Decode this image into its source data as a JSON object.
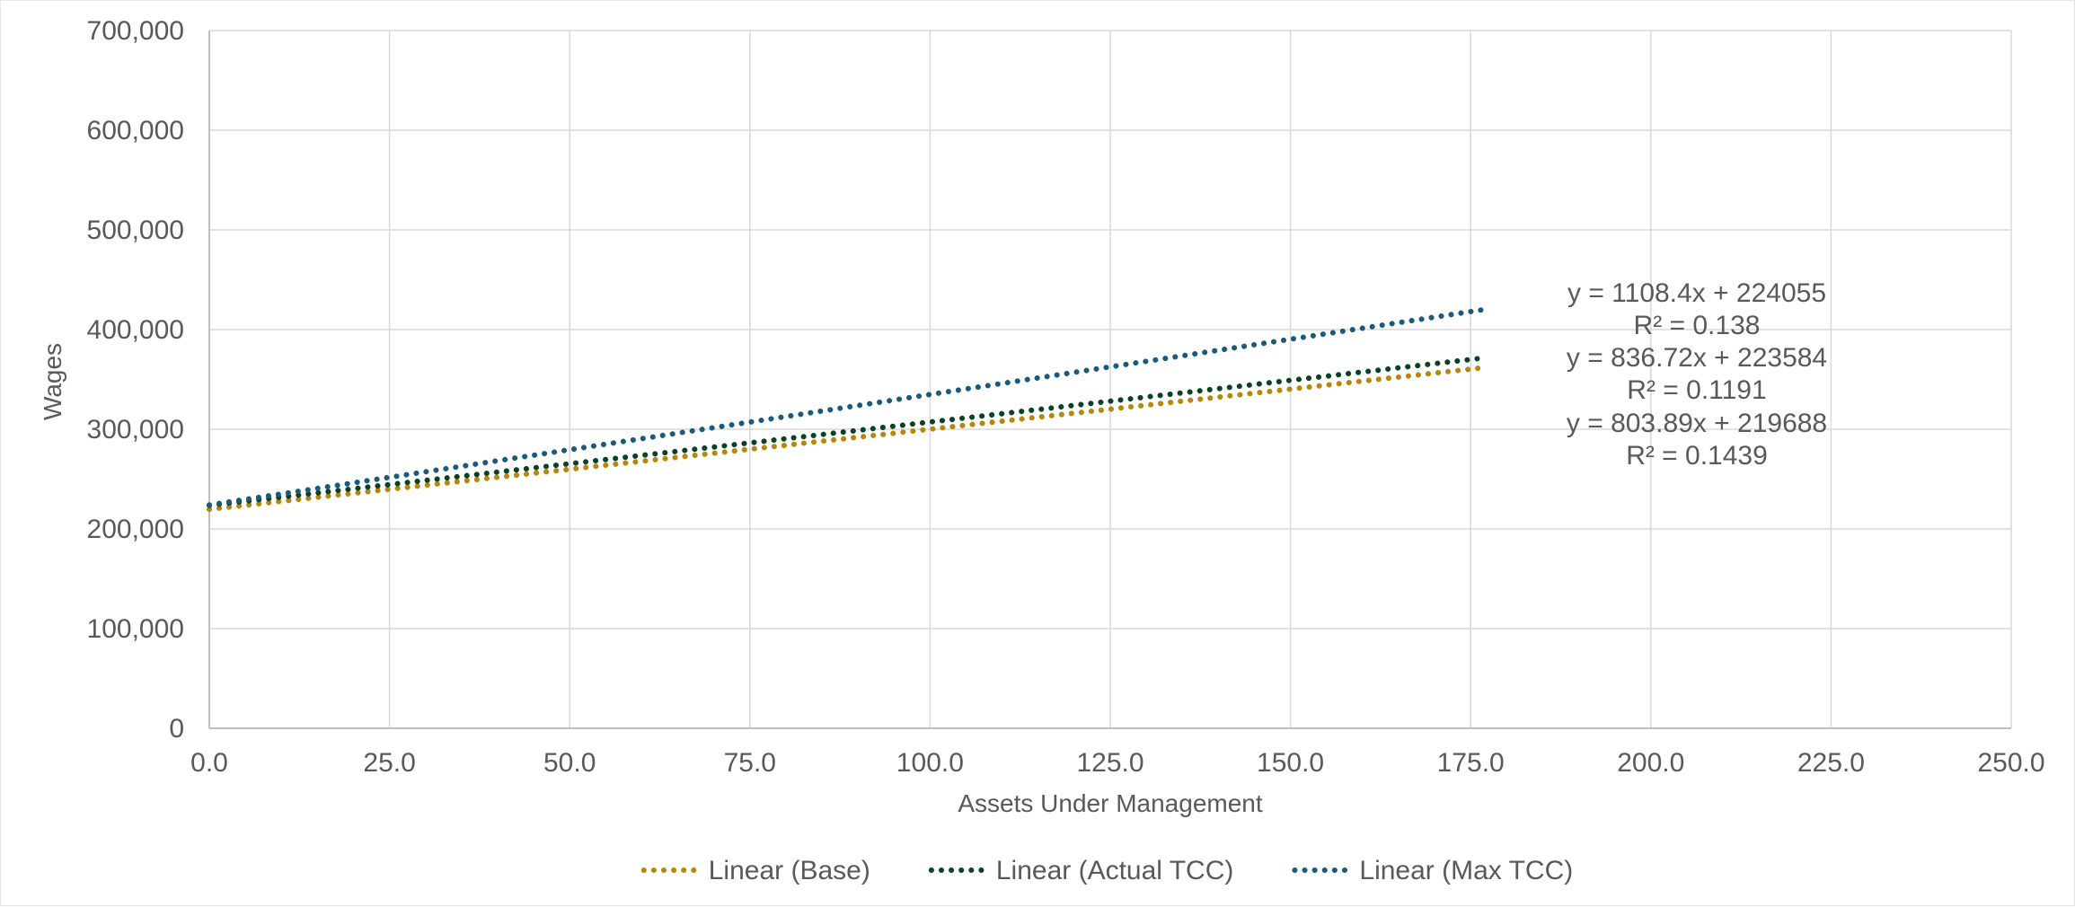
{
  "chart_data": {
    "type": "line",
    "title": "",
    "xlabel": "Assets Under Management",
    "ylabel": "Wages",
    "xlim": [
      0,
      250
    ],
    "ylim": [
      0,
      700000
    ],
    "x_ticks": [
      0,
      25,
      50,
      75,
      100,
      125,
      150,
      175,
      200,
      225,
      250
    ],
    "x_tick_labels": [
      "0.0",
      "25.0",
      "50.0",
      "75.0",
      "100.0",
      "125.0",
      "150.0",
      "175.0",
      "200.0",
      "225.0",
      "250.0"
    ],
    "y_ticks": [
      0,
      100000,
      200000,
      300000,
      400000,
      500000,
      600000,
      700000
    ],
    "y_tick_labels": [
      "0",
      "100,000",
      "200,000",
      "300,000",
      "400,000",
      "500,000",
      "600,000",
      "700,000"
    ],
    "grid": true,
    "legend_position": "bottom",
    "series": [
      {
        "name": "Linear (Base)",
        "color": "#B8860B",
        "line_style": "dotted",
        "x": [
          0,
          176
        ],
        "y": [
          219688,
          361172
        ]
      },
      {
        "name": "Linear (Actual TCC)",
        "color": "#0B4226",
        "line_style": "dotted",
        "x": [
          0,
          176
        ],
        "y": [
          223584,
          370847
        ]
      },
      {
        "name": "Linear (Max TCC)",
        "color": "#1B5A7D",
        "line_style": "dotted",
        "x": [
          0,
          177
        ],
        "y": [
          224055,
          420242
        ]
      }
    ],
    "annotations": [
      "y = 1108.4x + 224055",
      "R² = 0.138",
      "y = 836.72x + 223584",
      "R² = 0.1191",
      "y = 803.89x + 219688",
      "R² = 0.1439"
    ]
  }
}
